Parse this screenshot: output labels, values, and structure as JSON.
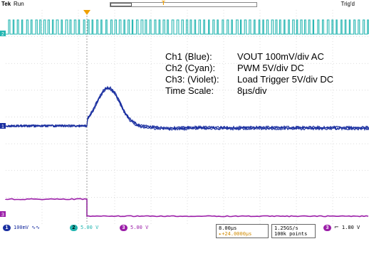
{
  "header": {
    "brand": "Tek",
    "run_state": "Run",
    "trigger_state": "Trig'd",
    "record_marker": "T"
  },
  "annotations": [
    {
      "key": "Ch1 (Blue):",
      "value": "VOUT 100mV/div AC"
    },
    {
      "key": "Ch2 (Cyan):",
      "value": "PWM 5V/div DC"
    },
    {
      "key": "Ch3: (Violet):",
      "value": "Load Trigger 5V/div DC"
    },
    {
      "key": "Time Scale:",
      "value": "8µs/div"
    }
  ],
  "channel_markers": {
    "ch1": "1",
    "ch2": "2",
    "ch3": "3"
  },
  "readouts": {
    "ch1": {
      "num": "1",
      "scale": "100mV",
      "coupling": "∿∿"
    },
    "ch2": {
      "num": "2",
      "scale": "5.00 V"
    },
    "ch3": {
      "num": "3",
      "scale": "5.00 V"
    },
    "timebase": "8.00µs",
    "position": "▸+24.0000µs",
    "sample_rate": "1.25GS/s",
    "record_length": "100k points",
    "trigger_channel": "3",
    "trigger_level": "1.80 V"
  },
  "colors": {
    "ch1": "#1a2fa0",
    "ch2": "#22b5b0",
    "ch3": "#9b1ea8",
    "grid": "#c8c8c8",
    "trigger_marker": "#f0a000"
  },
  "icons": {
    "trigger_slope": "rising-edge-icon"
  }
}
